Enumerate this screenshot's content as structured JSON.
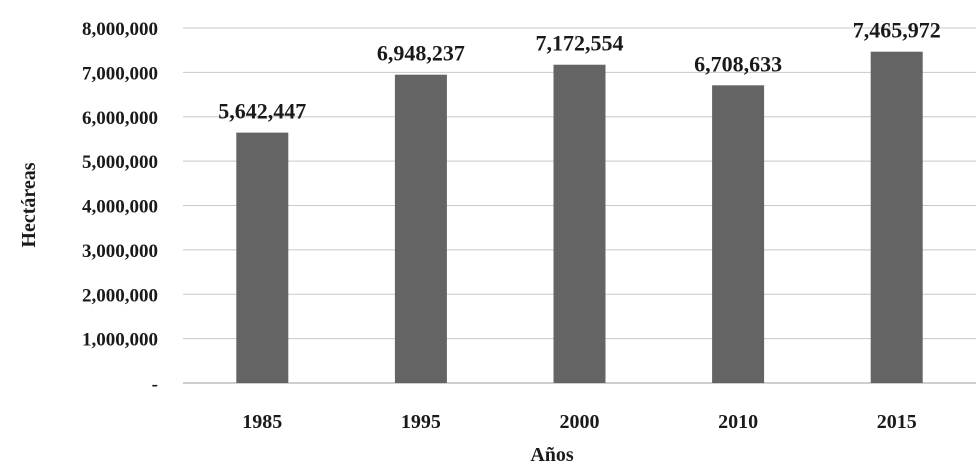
{
  "chart_data": {
    "type": "bar",
    "categories": [
      "1985",
      "1995",
      "2000",
      "2010",
      "2015"
    ],
    "values": [
      5642447,
      6948237,
      7172554,
      6708633,
      7465972
    ],
    "data_labels": [
      "5,642,447",
      "6,948,237",
      "7,172,554",
      "6,708,633",
      "7,465,972"
    ],
    "title": "",
    "xlabel": "Años",
    "ylabel": "Hectáreas",
    "ylim": [
      0,
      8000000
    ],
    "y_ticks": [
      0,
      1000000,
      2000000,
      3000000,
      4000000,
      5000000,
      6000000,
      7000000,
      8000000
    ],
    "y_tick_labels": [
      "-",
      "1,000,000",
      "2,000,000",
      "3,000,000",
      "4,000,000",
      "5,000,000",
      "6,000,000",
      "7,000,000",
      "8,000,000"
    ],
    "grid": true,
    "legend": "none",
    "bar_color": "#646464"
  }
}
